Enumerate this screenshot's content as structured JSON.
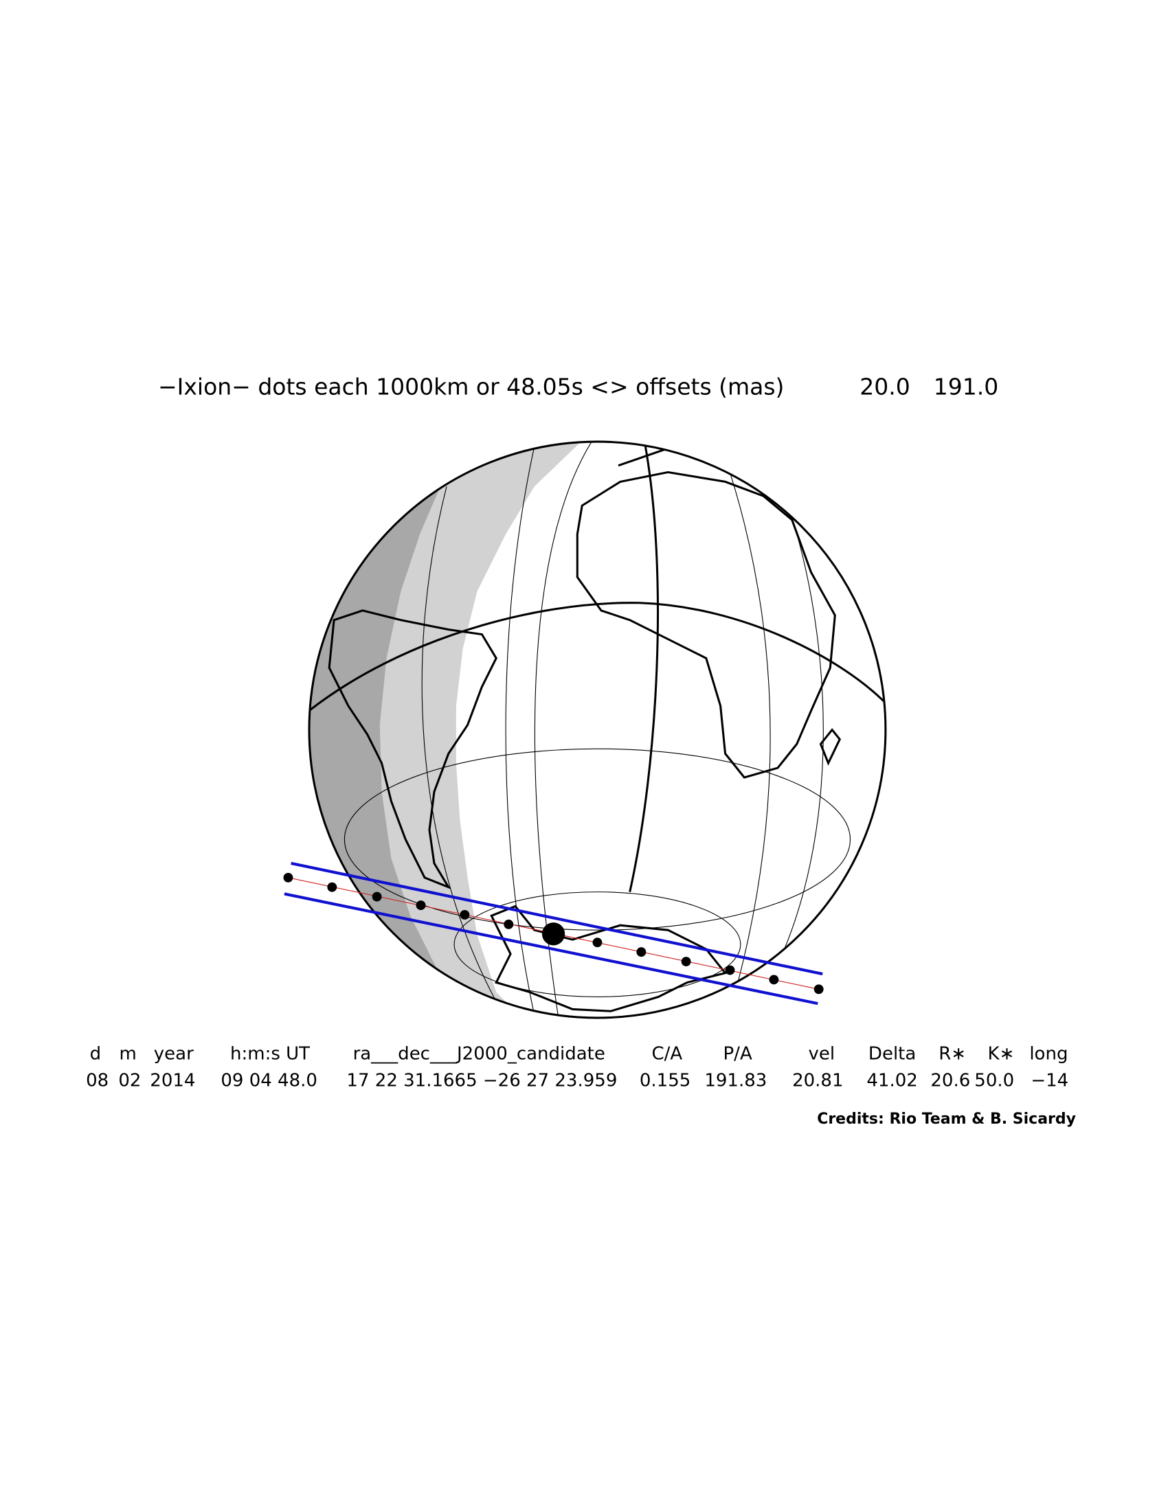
{
  "title": "−Ixion− dots each 1000km or 48.05s <> offsets (mas)",
  "offsets": [
    "20.0",
    "191.0"
  ],
  "table": {
    "header": [
      "d",
      "m",
      "year",
      "h:m:s UT",
      "ra___dec___J2000_candidate",
      "C/A",
      "P/A",
      "vel",
      "Delta",
      "R∗",
      "K∗",
      "long"
    ],
    "row": [
      "08",
      "02",
      "2014",
      "09 04 48.0",
      "17 22 31.1665 −26 27 23.959",
      "0.155",
      "191.83",
      "20.81",
      "41.02",
      "20.6",
      "50.0",
      "−14"
    ]
  },
  "credits": "Credits: Rio Team & B. Sicardy"
}
